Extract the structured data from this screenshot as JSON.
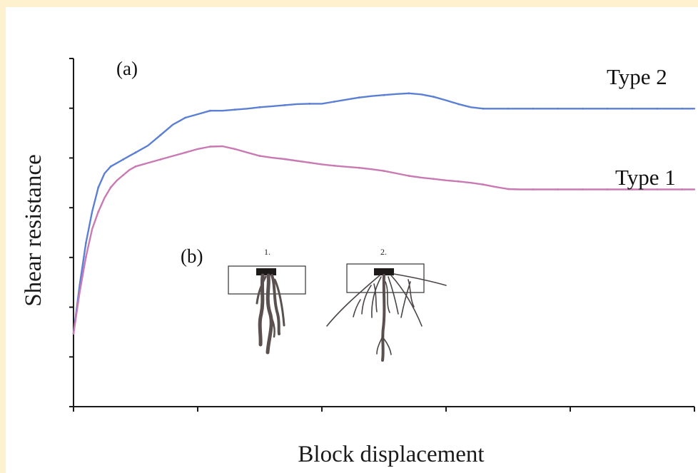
{
  "chart_data": {
    "type": "line",
    "title": "",
    "xlabel": "Block displacement",
    "ylabel": "Shear resistance",
    "panel_label": "(a)",
    "grid": false,
    "legend": "none; series labelled directly at right end",
    "xlim": [
      0,
      100
    ],
    "ylim": [
      0,
      100
    ],
    "tick_labels_shown": false,
    "x": [
      0,
      1,
      2,
      3,
      4,
      5,
      6,
      7,
      8,
      9,
      10,
      12,
      14,
      16,
      18,
      20,
      22,
      24,
      26,
      28,
      30,
      32,
      34,
      36,
      38,
      40,
      42,
      44,
      46,
      48,
      50,
      52,
      54,
      56,
      58,
      60,
      62,
      64,
      66,
      68,
      70,
      72,
      74,
      76,
      78,
      80,
      82,
      84,
      86,
      88,
      90,
      92,
      94,
      96,
      98,
      100
    ],
    "series": [
      {
        "name": "Type 2",
        "color": "#5b7fd4",
        "values": [
          21,
          35,
          47,
          56,
          63,
          67,
          69,
          70,
          71,
          72,
          73,
          75,
          78,
          81,
          83,
          84,
          85,
          85,
          85.3,
          85.6,
          86,
          86.3,
          86.6,
          86.9,
          87,
          87,
          87.6,
          88.2,
          88.8,
          89.2,
          89.5,
          89.8,
          90,
          89.7,
          89,
          88,
          86.9,
          86,
          85.6,
          85.6,
          85.6,
          85.6,
          85.6,
          85.6,
          85.6,
          85.6,
          85.6,
          85.6,
          85.6,
          85.6,
          85.6,
          85.6,
          85.6,
          85.6,
          85.6,
          85.6
        ]
      },
      {
        "name": "Type 1",
        "color": "#c97ab3",
        "values": [
          21,
          33,
          43,
          51,
          56,
          60,
          63,
          65,
          66.5,
          68,
          69,
          70,
          71,
          72,
          73,
          74,
          74.7,
          74.8,
          74,
          73,
          72,
          71.5,
          71.1,
          70.6,
          70.1,
          69.6,
          69.2,
          68.9,
          68.6,
          68.2,
          67.7,
          67,
          66.3,
          65.8,
          65.4,
          65,
          64.7,
          64.3,
          63.8,
          63.1,
          62.5,
          62.4,
          62.4,
          62.4,
          62.4,
          62.4,
          62.4,
          62.4,
          62.4,
          62.4,
          62.4,
          62.4,
          62.4,
          62.4,
          62.4,
          62.4
        ]
      }
    ],
    "inset": {
      "label": "(b)",
      "item_1_label": "1.",
      "item_2_label": "2."
    }
  }
}
